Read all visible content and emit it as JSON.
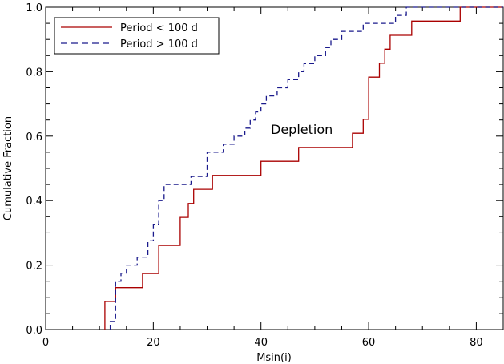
{
  "chart_data": {
    "type": "line",
    "title": "",
    "xlabel": "Msin(i)",
    "ylabel": "Cumulative Fraction",
    "xlim": [
      0,
      85
    ],
    "ylim": [
      0,
      1
    ],
    "x_ticks": [
      0,
      20,
      40,
      60,
      80
    ],
    "y_ticks": [
      0.0,
      0.2,
      0.4,
      0.6,
      0.8,
      1.0
    ],
    "x_tick_labels": [
      "0",
      "20",
      "40",
      "60",
      "80"
    ],
    "y_tick_labels": [
      "0.0",
      "0.2",
      "0.4",
      "0.6",
      "0.8",
      "1.0"
    ],
    "grid": false,
    "legend_position": "top-left",
    "annotation": "Depletion",
    "step": true,
    "series": [
      {
        "name": "Period < 100 d",
        "color": "#aa0000",
        "dash": "solid",
        "x": [
          11,
          11,
          13,
          13,
          18,
          18,
          21,
          21,
          25,
          25,
          26.5,
          26.5,
          27.5,
          27.5,
          28,
          28,
          31,
          31,
          40,
          40,
          47,
          47,
          57,
          57,
          59,
          59,
          60,
          60,
          62,
          62,
          63,
          63,
          64,
          64,
          68,
          68,
          77,
          77,
          85
        ],
        "y": [
          0,
          0.087,
          0.087,
          0.13,
          0.13,
          0.174,
          0.174,
          0.261,
          0.261,
          0.348,
          0.348,
          0.391,
          0.391,
          0.435,
          0.435,
          0.435,
          0.435,
          0.478,
          0.478,
          0.522,
          0.522,
          0.565,
          0.565,
          0.609,
          0.609,
          0.652,
          0.652,
          0.783,
          0.783,
          0.826,
          0.826,
          0.87,
          0.87,
          0.913,
          0.913,
          0.957,
          0.957,
          1.0,
          1.0
        ]
      },
      {
        "name": "Period > 100 d",
        "color": "#1a1a8c",
        "dash": "dashed",
        "x": [
          12,
          12,
          13,
          13,
          14,
          14,
          15,
          15,
          16,
          16,
          17,
          17,
          18,
          18,
          19,
          19,
          20,
          20,
          21,
          21,
          22,
          22,
          23,
          23,
          25,
          25,
          27,
          27,
          28,
          28,
          30,
          30,
          33,
          33,
          35,
          35,
          37,
          37,
          38,
          38,
          39,
          39,
          40,
          40,
          41,
          41,
          42,
          42,
          43,
          43,
          45,
          45,
          47,
          47,
          48,
          48,
          50,
          50,
          52,
          52,
          53,
          53,
          55,
          55,
          59,
          59,
          63,
          63,
          65,
          65,
          67,
          67,
          69,
          69,
          85
        ],
        "y": [
          0,
          0.025,
          0.025,
          0.15,
          0.15,
          0.175,
          0.175,
          0.2,
          0.2,
          0.2,
          0.2,
          0.225,
          0.225,
          0.225,
          0.225,
          0.275,
          0.275,
          0.325,
          0.325,
          0.4,
          0.4,
          0.45,
          0.45,
          0.45,
          0.45,
          0.45,
          0.45,
          0.475,
          0.475,
          0.475,
          0.475,
          0.55,
          0.55,
          0.575,
          0.575,
          0.6,
          0.6,
          0.625,
          0.625,
          0.65,
          0.65,
          0.675,
          0.675,
          0.7,
          0.7,
          0.725,
          0.725,
          0.725,
          0.725,
          0.75,
          0.75,
          0.775,
          0.775,
          0.8,
          0.8,
          0.825,
          0.825,
          0.85,
          0.85,
          0.875,
          0.875,
          0.9,
          0.9,
          0.925,
          0.925,
          0.95,
          0.95,
          0.95,
          0.95,
          0.975,
          0.975,
          1.0,
          1.0,
          1.0,
          1.0
        ]
      }
    ]
  }
}
